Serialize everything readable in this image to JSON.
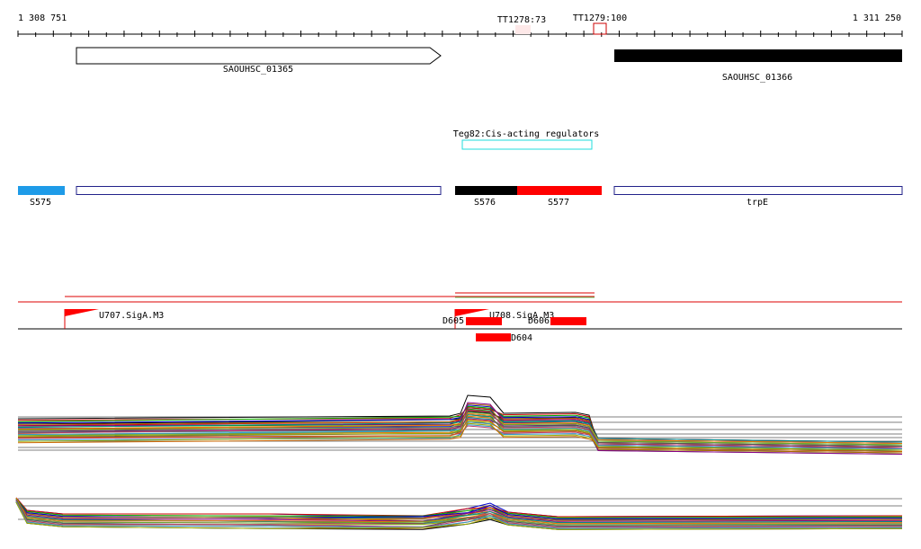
{
  "ruler": {
    "start": "1 308 751",
    "end": "1 311 250",
    "terminators": [
      "TT1278:73",
      "TT1279:100"
    ]
  },
  "genes": [
    "SAOUHSC_01365",
    "SAOUHSC_01366"
  ],
  "regulator": "Teg82:Cis-acting regulators",
  "segments": [
    "S575",
    "S576",
    "S577",
    "trpE"
  ],
  "promoters": [
    "U707.SigA.M3",
    "U708.SigA.M3"
  ],
  "deletions": [
    "D605",
    "D606",
    "D604"
  ]
}
